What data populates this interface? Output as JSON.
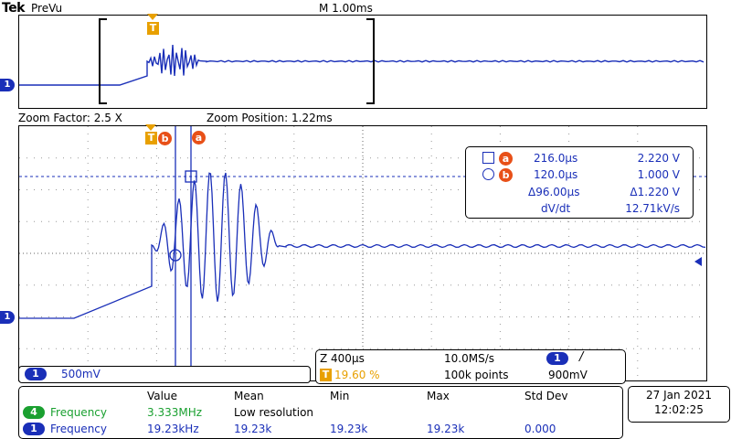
{
  "header": {
    "brand": "Tek",
    "mode": "PreVu",
    "timebase": "M 1.00ms"
  },
  "zoom": {
    "factor": "Zoom Factor: 2.5 X",
    "position": "Zoom Position: 1.22ms"
  },
  "markers": {
    "trigger": "T",
    "cursor_a": "a",
    "cursor_b": "b",
    "channel1": "1"
  },
  "cursors": {
    "a": {
      "time": "216.0µs",
      "volt": "2.220 V"
    },
    "b": {
      "time": "120.0µs",
      "volt": "1.000 V"
    },
    "delta": {
      "time": "Δ96.00µs",
      "volt": "Δ1.220 V"
    },
    "slope": {
      "label": "dV/dt",
      "value": "12.71kV/s"
    }
  },
  "scale": {
    "channel": "1",
    "value": "500mV"
  },
  "acquisition": {
    "zoom_time": "Z 400µs",
    "sample_rate": "10.0MS/s",
    "trigger_channel": "1",
    "trigger_slope": "/",
    "trigger_pos": "19.60 %",
    "record_length": "100k points",
    "trigger_level": "900mV"
  },
  "measurements": {
    "headers": [
      "Value",
      "Mean",
      "Min",
      "Max",
      "Std Dev"
    ],
    "rows": [
      {
        "channel": "4",
        "label": "Frequency",
        "value": "3.333MHz",
        "mean": "Low resolution",
        "min": "",
        "max": "",
        "std": ""
      },
      {
        "channel": "1",
        "label": "Frequency",
        "value": "19.23kHz",
        "mean": "19.23k",
        "min": "19.23k",
        "max": "19.23k",
        "std": "0.000"
      }
    ]
  },
  "datetime": {
    "date": "27 Jan  2021",
    "time": "12:02:25"
  },
  "colors": {
    "trace": "#1a2fb8",
    "trigger": "#e8a000",
    "cursor_marker": "#e85018",
    "ch4": "#1aa030"
  }
}
